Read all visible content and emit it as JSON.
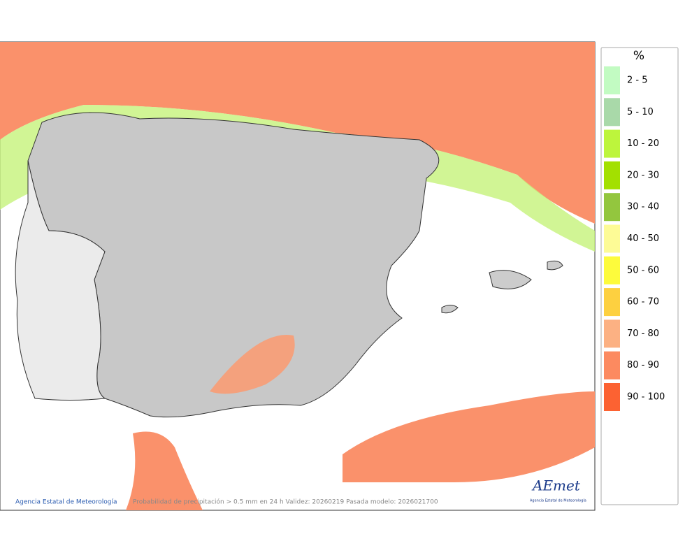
{
  "map": {
    "footer": {
      "credit": "Agencia Estatal de Meteorología",
      "caption": "Probabilidad de precipitación > 0.5 mm en 24 h Validez: 20260219 Pasada modelo: 2026021700"
    },
    "logo": {
      "name": "AEmet",
      "subtitle": "Agencia Estatal de Meteorología"
    },
    "legend": {
      "title": "%",
      "items": [
        {
          "label": "2 - 5",
          "color": "#c2fbc2"
        },
        {
          "label": "5 - 10",
          "color": "#a9d9a9"
        },
        {
          "label": "10 - 20",
          "color": "#bdf53c"
        },
        {
          "label": "20 - 30",
          "color": "#a3e000"
        },
        {
          "label": "30 - 40",
          "color": "#93c63e"
        },
        {
          "label": "40 - 50",
          "color": "#fdfb96"
        },
        {
          "label": "50 - 60",
          "color": "#fdfb3c"
        },
        {
          "label": "60 - 70",
          "color": "#fdd040"
        },
        {
          "label": "70 - 80",
          "color": "#fcb183"
        },
        {
          "label": "80 - 90",
          "color": "#fc8a60"
        },
        {
          "label": "90 - 100",
          "color": "#fc6232"
        }
      ]
    }
  }
}
